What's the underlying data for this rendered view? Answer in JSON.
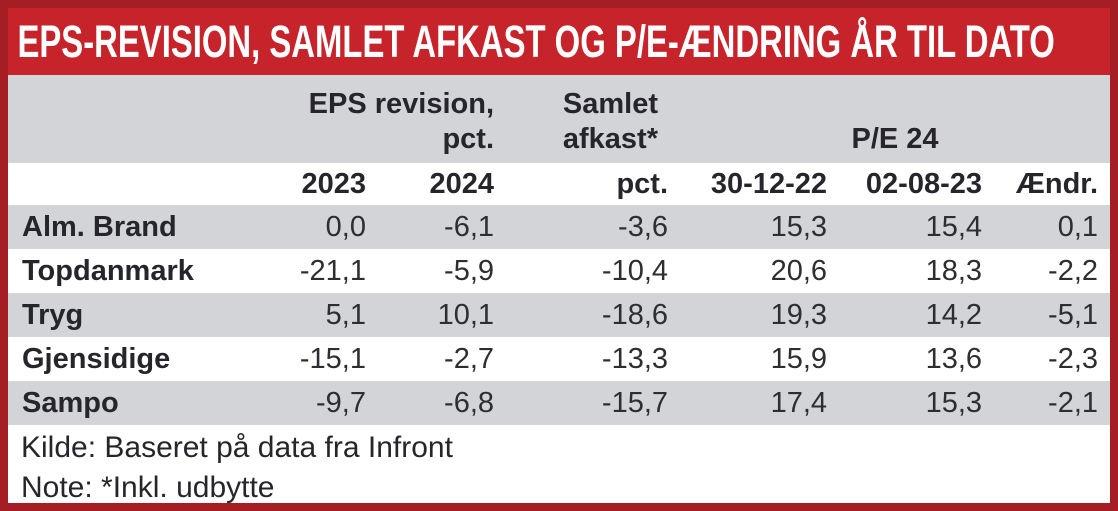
{
  "title": "EPS-REVISION, SAMLET AFKAST OG P/E-ÆNDRING ÅR TIL DATO",
  "table": {
    "group_headers": {
      "eps": {
        "line1": "EPS revision,",
        "line2": "pct."
      },
      "afkast": {
        "line1": "Samlet",
        "line2": "afkast*"
      },
      "pe": {
        "label": "P/E 24"
      }
    },
    "columns": [
      "",
      "2023",
      "2024",
      "pct.",
      "30-12-22",
      "02-08-23",
      "Ændr."
    ],
    "rows": [
      {
        "name": "Alm. Brand",
        "values": [
          "0,0",
          "-6,1",
          "-3,6",
          "15,3",
          "15,4",
          "0,1"
        ]
      },
      {
        "name": "Topdanmark",
        "values": [
          "-21,1",
          "-5,9",
          "-10,4",
          "20,6",
          "18,3",
          "-2,2"
        ]
      },
      {
        "name": "Tryg",
        "values": [
          "5,1",
          "10,1",
          "-18,6",
          "19,3",
          "14,2",
          "-5,1"
        ]
      },
      {
        "name": "Gjensidige",
        "values": [
          "-15,1",
          "-2,7",
          "-13,3",
          "15,9",
          "13,6",
          "-2,3"
        ]
      },
      {
        "name": "Sampo",
        "values": [
          "-9,7",
          "-6,8",
          "-15,7",
          "17,4",
          "15,3",
          "-2,1"
        ]
      }
    ]
  },
  "footer": {
    "source": "Kilde: Baseret på data fra Infront",
    "note": "Note: *Inkl. udbytte"
  },
  "colors": {
    "banner_red": "#c7232a",
    "frame_red": "#a41e23",
    "row_gray": "#d2d4d8",
    "text_dark": "#26252b",
    "title_text": "#ffffff"
  },
  "chart_data": {
    "type": "table",
    "title": "EPS-REVISION, SAMLET AFKAST OG P/E-ÆNDRING ÅR TIL DATO",
    "column_groups": [
      "EPS revision, pct.",
      "Samlet afkast*",
      "P/E 24"
    ],
    "columns": [
      "EPS revision pct. 2023",
      "EPS revision pct. 2024",
      "Samlet afkast pct.",
      "P/E 24 30-12-22",
      "P/E 24 02-08-23",
      "P/E 24 Ændr."
    ],
    "row_labels": [
      "Alm. Brand",
      "Topdanmark",
      "Tryg",
      "Gjensidige",
      "Sampo"
    ],
    "rows": [
      [
        0.0,
        -6.1,
        -3.6,
        15.3,
        15.4,
        0.1
      ],
      [
        -21.1,
        -5.9,
        -10.4,
        20.6,
        18.3,
        -2.2
      ],
      [
        5.1,
        10.1,
        -18.6,
        19.3,
        14.2,
        -5.1
      ],
      [
        -15.1,
        -2.7,
        -13.3,
        15.9,
        13.6,
        -2.3
      ],
      [
        -9.7,
        -6.8,
        -15.7,
        17.4,
        15.3,
        -2.1
      ]
    ],
    "source": "Kilde: Baseret på data fra Infront",
    "note": "Note: *Inkl. udbytte"
  }
}
